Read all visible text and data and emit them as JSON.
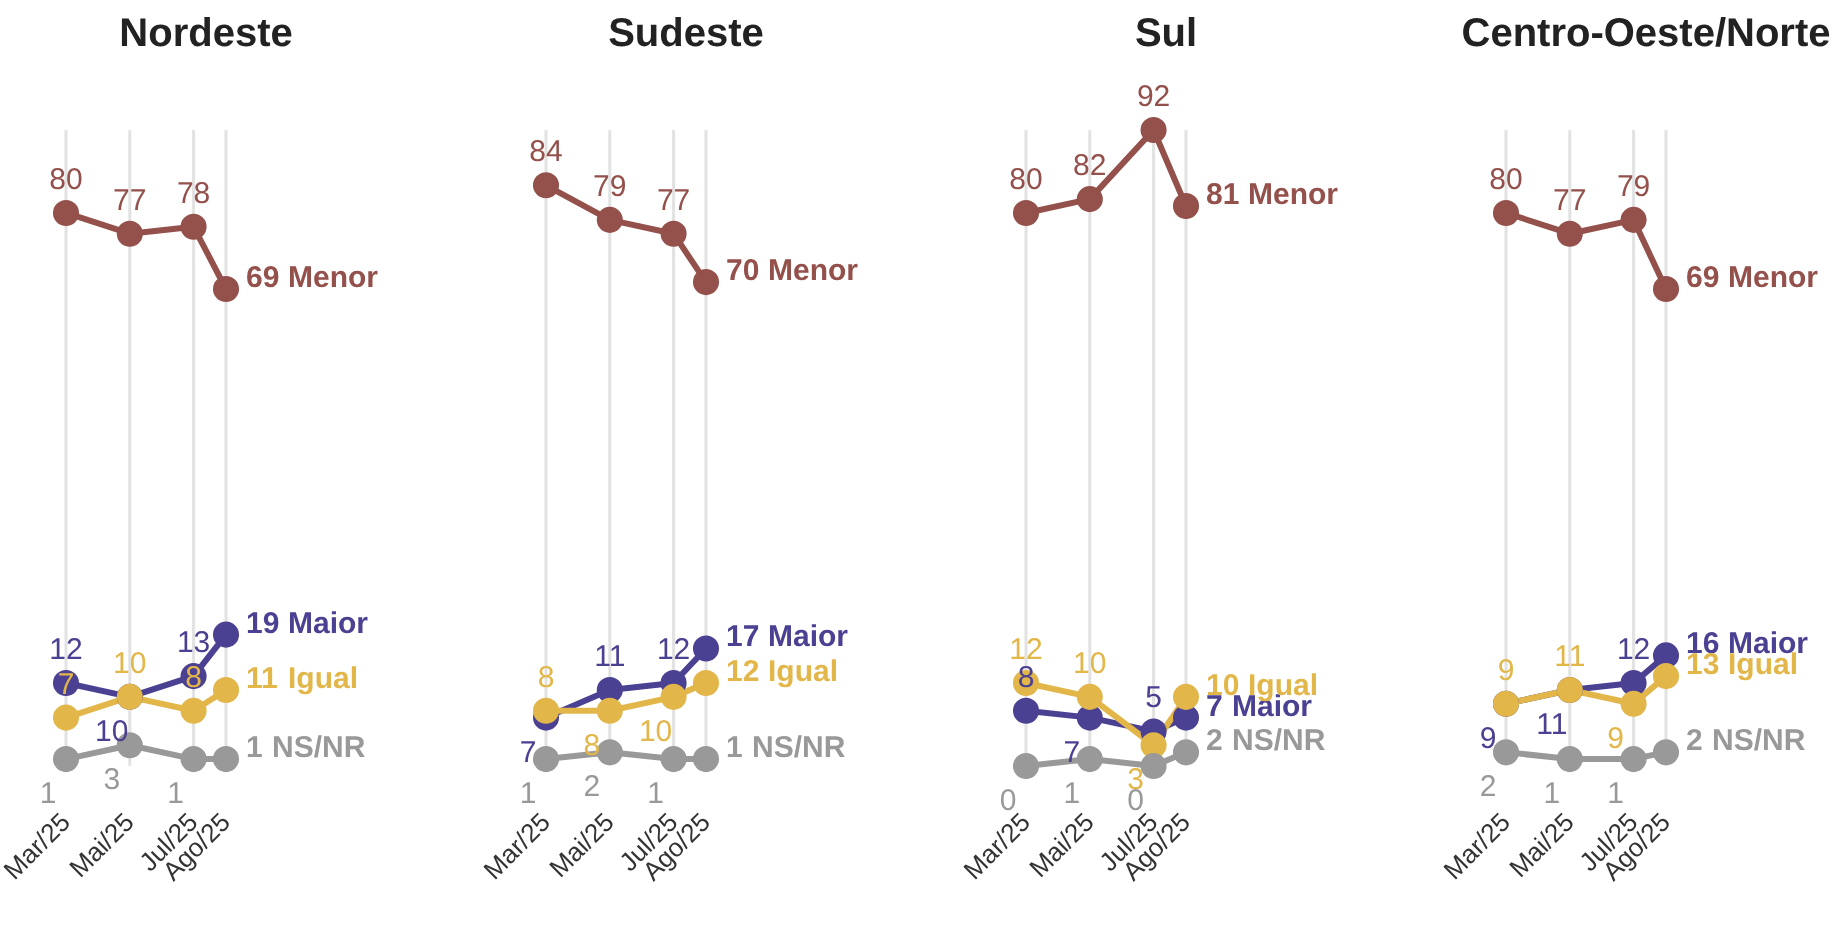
{
  "chart_data": [
    {
      "type": "line",
      "title": "Nordeste",
      "xlim": [
        "2025-03",
        "2025-08"
      ],
      "x": [
        "2025-03",
        "2025-05",
        "2025-07",
        "2025-08"
      ],
      "xticks": [
        {
          "value": "2025-03",
          "label": "Mar/25"
        },
        {
          "value": "2025-05",
          "label": "Mai/25"
        },
        {
          "value": "2025-07",
          "label": "Jul/25"
        },
        {
          "value": "2025-08",
          "label": "Ago/25"
        }
      ],
      "grid": "x",
      "tick_labels": "x",
      "marker": "circle",
      "data_labels": true,
      "series": [
        {
          "name": "Menor",
          "color": "#94504b",
          "values": [
            80,
            77,
            78,
            69
          ]
        },
        {
          "name": "Maior",
          "color": "#4b4192",
          "values": [
            12,
            10,
            13,
            19
          ]
        },
        {
          "name": "Igual",
          "color": "#e2b649",
          "values": [
            7,
            10,
            8,
            11
          ]
        },
        {
          "name": "NS/NR",
          "color": "#999999",
          "values": [
            1,
            3,
            1,
            1
          ]
        }
      ]
    },
    {
      "type": "line",
      "title": "Sudeste",
      "xlim": [
        "2025-03",
        "2025-08"
      ],
      "x": [
        "2025-03",
        "2025-05",
        "2025-07",
        "2025-08"
      ],
      "xticks": [
        {
          "value": "2025-03",
          "label": "Mar/25"
        },
        {
          "value": "2025-05",
          "label": "Mai/25"
        },
        {
          "value": "2025-07",
          "label": "Jul/25"
        },
        {
          "value": "2025-08",
          "label": "Ago/25"
        }
      ],
      "grid": "x",
      "tick_labels": "x",
      "marker": "circle",
      "data_labels": true,
      "series": [
        {
          "name": "Menor",
          "color": "#94504b",
          "values": [
            84,
            79,
            77,
            70
          ]
        },
        {
          "name": "Maior",
          "color": "#4b4192",
          "values": [
            7,
            11,
            12,
            17
          ]
        },
        {
          "name": "Igual",
          "color": "#e2b649",
          "values": [
            8,
            8,
            10,
            12
          ]
        },
        {
          "name": "NS/NR",
          "color": "#999999",
          "values": [
            1,
            2,
            1,
            1
          ]
        }
      ]
    },
    {
      "type": "line",
      "title": "Sul",
      "xlim": [
        "2025-03",
        "2025-08"
      ],
      "x": [
        "2025-03",
        "2025-05",
        "2025-07",
        "2025-08"
      ],
      "xticks": [
        {
          "value": "2025-03",
          "label": "Mar/25"
        },
        {
          "value": "2025-05",
          "label": "Mai/25"
        },
        {
          "value": "2025-07",
          "label": "Jul/25"
        },
        {
          "value": "2025-08",
          "label": "Ago/25"
        }
      ],
      "grid": "x",
      "tick_labels": "x",
      "marker": "circle",
      "data_labels": true,
      "series": [
        {
          "name": "Menor",
          "color": "#94504b",
          "values": [
            80,
            82,
            92,
            81
          ]
        },
        {
          "name": "Maior",
          "color": "#4b4192",
          "values": [
            8,
            7,
            5,
            7
          ]
        },
        {
          "name": "Igual",
          "color": "#e2b649",
          "values": [
            12,
            10,
            3,
            10
          ]
        },
        {
          "name": "NS/NR",
          "color": "#999999",
          "values": [
            0,
            1,
            0,
            2
          ]
        }
      ]
    },
    {
      "type": "line",
      "title": "Centro-Oeste/Norte",
      "xlim": [
        "2025-03",
        "2025-08"
      ],
      "x": [
        "2025-03",
        "2025-05",
        "2025-07",
        "2025-08"
      ],
      "xticks": [
        {
          "value": "2025-03",
          "label": "Mar/25"
        },
        {
          "value": "2025-05",
          "label": "Mai/25"
        },
        {
          "value": "2025-07",
          "label": "Jul/25"
        },
        {
          "value": "2025-08",
          "label": "Ago/25"
        }
      ],
      "grid": "x",
      "tick_labels": "x",
      "marker": "circle",
      "data_labels": true,
      "series": [
        {
          "name": "Menor",
          "color": "#94504b",
          "values": [
            80,
            77,
            79,
            69
          ]
        },
        {
          "name": "Maior",
          "color": "#4b4192",
          "values": [
            9,
            11,
            12,
            16
          ]
        },
        {
          "name": "Igual",
          "color": "#e2b649",
          "values": [
            9,
            11,
            9,
            13
          ]
        },
        {
          "name": "NS/NR",
          "color": "#999999",
          "values": [
            2,
            1,
            1,
            2
          ]
        }
      ]
    }
  ]
}
